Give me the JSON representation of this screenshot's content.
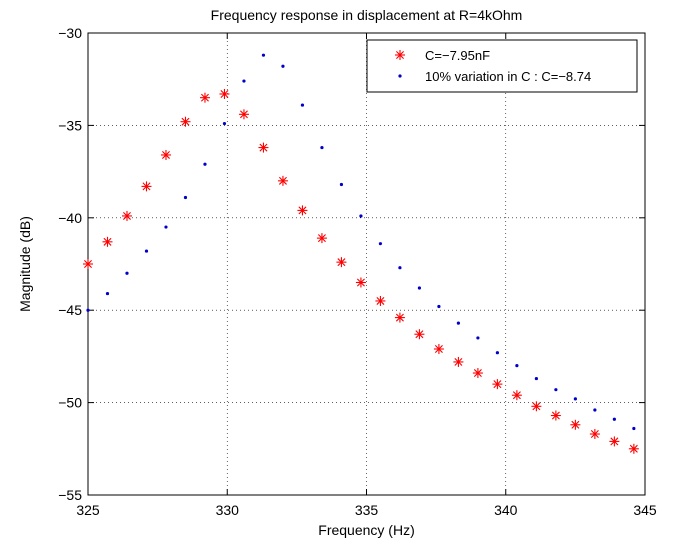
{
  "chart_data": {
    "type": "scatter",
    "title": "Frequency response in displacement at R=4kOhm",
    "xlabel": "Frequency (Hz)",
    "ylabel": "Magnitude (dB)",
    "xlim": [
      325,
      345
    ],
    "ylim": [
      -55,
      -30
    ],
    "xticks": [
      325,
      330,
      335,
      340,
      345
    ],
    "yticks": [
      -30,
      -35,
      -40,
      -45,
      -50,
      -55
    ],
    "xtick_labels": [
      "325",
      "330",
      "335",
      "340",
      "345"
    ],
    "ytick_labels": [
      "−30",
      "−35",
      "−40",
      "−45",
      "−50",
      "−55"
    ],
    "grid": true,
    "legend_position": "top-right",
    "series": [
      {
        "name": "C=−7.95nF",
        "marker": "asterisk",
        "color": "#ff0000",
        "x": [
          325.0,
          325.7,
          326.4,
          327.1,
          327.8,
          328.5,
          329.2,
          329.9,
          330.6,
          331.3,
          332.0,
          332.7,
          333.4,
          334.1,
          334.8,
          335.5,
          336.2,
          336.9,
          337.6,
          338.3,
          339.0,
          339.7,
          340.4,
          341.1,
          341.8,
          342.5,
          343.2,
          343.9,
          344.6
        ],
        "y": [
          -42.5,
          -41.3,
          -39.9,
          -38.3,
          -36.6,
          -34.8,
          -33.5,
          -33.3,
          -34.4,
          -36.2,
          -38.0,
          -39.6,
          -41.1,
          -42.4,
          -43.5,
          -44.5,
          -45.4,
          -46.3,
          -47.1,
          -47.8,
          -48.4,
          -49.0,
          -49.6,
          -50.2,
          -50.7,
          -51.2,
          -51.7,
          -52.1,
          -52.5
        ]
      },
      {
        "name": "10% variation in C : C=−8.74",
        "marker": "dot",
        "color": "#0000cc",
        "x": [
          325.0,
          325.7,
          326.4,
          327.1,
          327.8,
          328.5,
          329.2,
          329.9,
          330.6,
          331.3,
          332.0,
          332.7,
          333.4,
          334.1,
          334.8,
          335.5,
          336.2,
          336.9,
          337.6,
          338.3,
          339.0,
          339.7,
          340.4,
          341.1,
          341.8,
          342.5,
          343.2,
          343.9,
          344.6
        ],
        "y": [
          -45.0,
          -44.1,
          -43.0,
          -41.8,
          -40.5,
          -38.9,
          -37.1,
          -34.9,
          -32.6,
          -31.2,
          -31.8,
          -33.9,
          -36.2,
          -38.2,
          -39.9,
          -41.4,
          -42.7,
          -43.8,
          -44.8,
          -45.7,
          -46.5,
          -47.3,
          -48.0,
          -48.7,
          -49.3,
          -49.8,
          -50.4,
          -50.9,
          -51.4
        ]
      }
    ]
  }
}
